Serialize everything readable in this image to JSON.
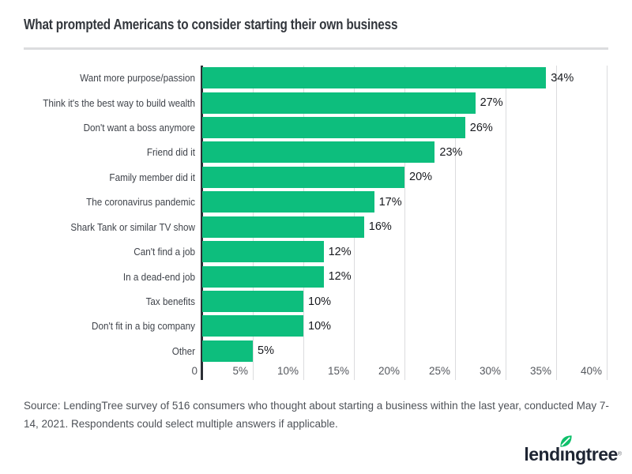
{
  "header": {
    "divider": true
  },
  "chart_data": {
    "type": "bar",
    "orientation": "horizontal",
    "title": "What prompted Americans to consider starting their own business",
    "categories": [
      "Want more purpose/passion",
      "Think it's the best way to build wealth",
      "Don't want a boss anymore",
      "Friend did it",
      "Family member did it",
      "The coronavirus pandemic",
      "Shark Tank or similar TV show",
      "Can't find a job",
      "In a dead-end job",
      "Tax benefits",
      "Don't fit in a big company",
      "Other"
    ],
    "values": [
      34,
      27,
      26,
      23,
      20,
      17,
      16,
      12,
      12,
      10,
      10,
      5
    ],
    "value_labels": [
      "34%",
      "27%",
      "26%",
      "23%",
      "20%",
      "17%",
      "16%",
      "12%",
      "12%",
      "10%",
      "10%",
      "5%"
    ],
    "xlabel": "",
    "ylabel": "",
    "xlim": [
      0,
      40
    ],
    "x_ticks": [
      {
        "label": "0",
        "value": 0
      },
      {
        "label": "5%",
        "value": 5
      },
      {
        "label": "10%",
        "value": 10
      },
      {
        "label": "15%",
        "value": 15
      },
      {
        "label": "20%",
        "value": 20
      },
      {
        "label": "25%",
        "value": 25
      },
      {
        "label": "30%",
        "value": 30
      },
      {
        "label": "35%",
        "value": 35
      },
      {
        "label": "40%",
        "value": 40
      }
    ],
    "grid": true,
    "legend": false,
    "bar_color": "#0dbe7d",
    "axis_color": "#2c2f35",
    "gridline_color": "#dbdcde"
  },
  "source": {
    "text": "Source: LendingTree survey of 516 consumers who thought about starting a business within the last year, conducted May 7-14, 2021. Respondents could select multiple answers if applicable."
  },
  "logo": {
    "wordmark": "lendingtree",
    "wordmark_display": "lendıngtree",
    "registered_mark": "®",
    "leaf_color": "#0ec06a",
    "navy_color": "#1e2533"
  }
}
